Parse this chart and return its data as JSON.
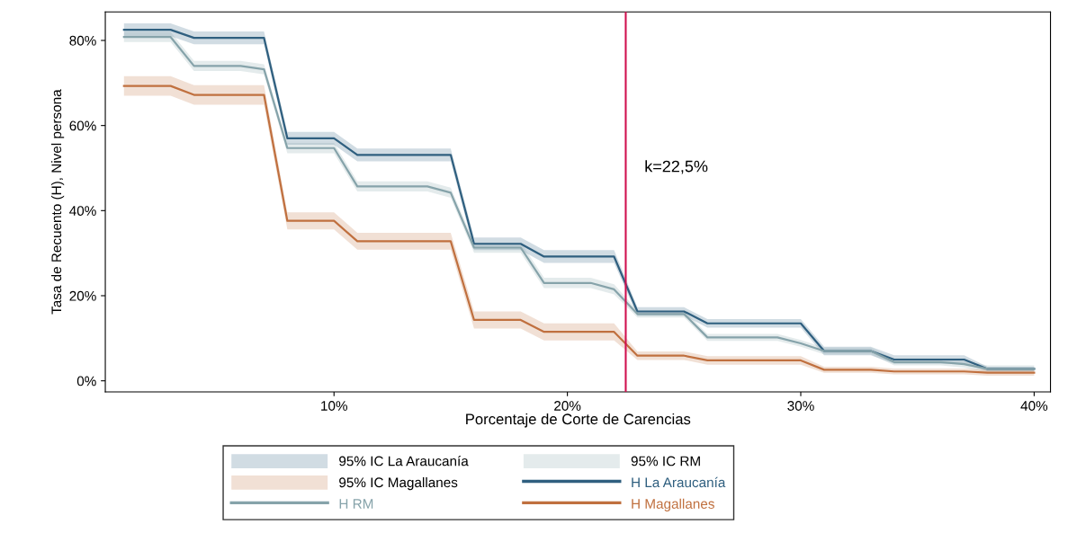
{
  "chart_data": {
    "type": "line",
    "xlabel": "Porcentaje de Corte de Carencias",
    "ylabel": "Tasa de Recuento (H), Nivel persona",
    "annotations": [
      "95% IC La Araucanía",
      "95% IC RM",
      "95% IC Magallanes"
    ],
    "x": [
      1,
      2,
      3,
      4,
      5,
      6,
      7,
      8,
      9,
      10,
      11,
      12,
      13,
      14,
      15,
      16,
      17,
      18,
      19,
      20,
      21,
      22,
      23,
      24,
      25,
      26,
      27,
      28,
      29,
      30,
      31,
      32,
      33,
      34,
      35,
      36,
      37,
      38,
      39,
      40
    ],
    "xlim": [
      0.2,
      40.7
    ],
    "xticks": [
      {
        "value": 10,
        "label": "10%"
      },
      {
        "value": 20,
        "label": "20%"
      },
      {
        "value": 30,
        "label": "30%"
      },
      {
        "value": 40,
        "label": "40%"
      }
    ],
    "ylim": [
      -2.6,
      86.7
    ],
    "yticks": [
      {
        "value": 0,
        "label": "0%"
      },
      {
        "value": 20,
        "label": "20%"
      },
      {
        "value": 40,
        "label": "40%"
      },
      {
        "value": 60,
        "label": "60%"
      },
      {
        "value": 80,
        "label": "80%"
      }
    ],
    "grid": false,
    "legend": "bottom",
    "marker": "none",
    "line_style": "solid",
    "series": [
      {
        "name": "H La Araucanía",
        "color": "#2f5f7f",
        "values": [
          82.5,
          82.5,
          82.5,
          80.6,
          80.6,
          80.6,
          80.6,
          57.0,
          57.0,
          57.0,
          53.1,
          53.1,
          53.1,
          53.1,
          53.1,
          32.2,
          32.2,
          32.2,
          29.2,
          29.2,
          29.2,
          29.2,
          16.3,
          16.3,
          16.3,
          13.5,
          13.5,
          13.5,
          13.5,
          13.5,
          7.0,
          7.0,
          7.0,
          5.0,
          5.0,
          5.0,
          5.0,
          2.8,
          2.8,
          2.8
        ],
        "lower": [
          81.0,
          81.0,
          81.0,
          79.1,
          79.1,
          79.1,
          79.1,
          55.5,
          55.5,
          55.5,
          51.6,
          51.6,
          51.6,
          51.6,
          51.6,
          30.7,
          30.7,
          30.7,
          27.7,
          27.7,
          27.7,
          27.7,
          15.3,
          15.3,
          15.3,
          12.5,
          12.5,
          12.5,
          12.5,
          12.5,
          6.0,
          6.0,
          6.0,
          4.0,
          4.0,
          4.0,
          4.0,
          2.3,
          2.3,
          2.3
        ],
        "upper": [
          84.0,
          84.0,
          84.0,
          82.1,
          82.1,
          82.1,
          82.1,
          58.5,
          58.5,
          58.5,
          54.6,
          54.6,
          54.6,
          54.6,
          54.6,
          33.7,
          33.7,
          33.7,
          30.7,
          30.7,
          30.7,
          30.7,
          17.3,
          17.3,
          17.3,
          14.5,
          14.5,
          14.5,
          14.5,
          14.5,
          8.0,
          8.0,
          8.0,
          6.0,
          6.0,
          6.0,
          6.0,
          3.3,
          3.3,
          3.3
        ]
      },
      {
        "name": "H RM",
        "color": "#86a3aa",
        "values": [
          80.8,
          80.8,
          80.8,
          74.0,
          74.0,
          74.0,
          73.2,
          54.7,
          54.7,
          54.7,
          45.7,
          45.7,
          45.7,
          45.7,
          44.2,
          31.3,
          31.3,
          31.3,
          23.0,
          23.0,
          23.0,
          21.5,
          15.7,
          15.7,
          15.7,
          10.2,
          10.2,
          10.2,
          10.2,
          8.8,
          7.0,
          7.0,
          7.0,
          4.4,
          4.4,
          4.4,
          3.9,
          2.8,
          2.8,
          2.8
        ],
        "lower": [
          79.6,
          79.6,
          79.6,
          72.8,
          72.8,
          72.8,
          72.0,
          53.5,
          53.5,
          53.5,
          44.5,
          44.5,
          44.5,
          44.5,
          43.0,
          30.1,
          30.1,
          30.1,
          21.8,
          21.8,
          21.8,
          20.3,
          14.9,
          14.9,
          14.9,
          9.4,
          9.4,
          9.4,
          9.4,
          8.0,
          6.2,
          6.2,
          6.2,
          3.6,
          3.6,
          3.6,
          3.1,
          2.0,
          2.0,
          2.0
        ],
        "upper": [
          82.0,
          82.0,
          82.0,
          75.2,
          75.2,
          75.2,
          74.4,
          55.9,
          55.9,
          55.9,
          46.9,
          46.9,
          46.9,
          46.9,
          45.4,
          32.5,
          32.5,
          32.5,
          24.2,
          24.2,
          24.2,
          22.7,
          16.5,
          16.5,
          16.5,
          11.0,
          11.0,
          11.0,
          11.0,
          9.6,
          7.8,
          7.8,
          7.8,
          5.2,
          5.2,
          5.2,
          4.7,
          3.6,
          3.6,
          3.6
        ]
      },
      {
        "name": "H Magallanes",
        "color": "#c0703f",
        "values": [
          69.3,
          69.3,
          69.3,
          67.2,
          67.2,
          67.2,
          67.2,
          37.6,
          37.6,
          37.6,
          32.8,
          32.8,
          32.8,
          32.8,
          32.8,
          14.3,
          14.3,
          14.3,
          11.5,
          11.5,
          11.5,
          11.5,
          5.9,
          5.9,
          5.9,
          4.8,
          4.8,
          4.8,
          4.8,
          4.8,
          2.6,
          2.6,
          2.6,
          2.2,
          2.2,
          2.2,
          2.2,
          1.9,
          1.9,
          1.9
        ],
        "lower": [
          67.0,
          67.0,
          67.0,
          64.9,
          64.9,
          64.9,
          64.9,
          35.6,
          35.6,
          35.6,
          30.8,
          30.8,
          30.8,
          30.8,
          30.8,
          12.3,
          12.3,
          12.3,
          9.5,
          9.5,
          9.5,
          9.5,
          4.9,
          4.9,
          4.9,
          3.8,
          3.8,
          3.8,
          3.8,
          3.8,
          1.9,
          1.9,
          1.9,
          1.5,
          1.5,
          1.5,
          1.5,
          1.2,
          1.2,
          1.2
        ],
        "upper": [
          71.6,
          71.6,
          71.6,
          69.5,
          69.5,
          69.5,
          69.5,
          39.6,
          39.6,
          39.6,
          34.8,
          34.8,
          34.8,
          34.8,
          34.8,
          16.3,
          16.3,
          16.3,
          13.5,
          13.5,
          13.5,
          13.5,
          6.9,
          6.9,
          6.9,
          5.8,
          5.8,
          5.8,
          5.8,
          5.8,
          3.3,
          3.3,
          3.3,
          2.9,
          2.9,
          2.9,
          2.9,
          2.6,
          2.6,
          2.6
        ]
      }
    ],
    "ref_lines": [
      {
        "axis": "x",
        "value": 22.5,
        "label": "k=22,5%",
        "color": "#d0104f",
        "line_style": "solid"
      }
    ]
  }
}
